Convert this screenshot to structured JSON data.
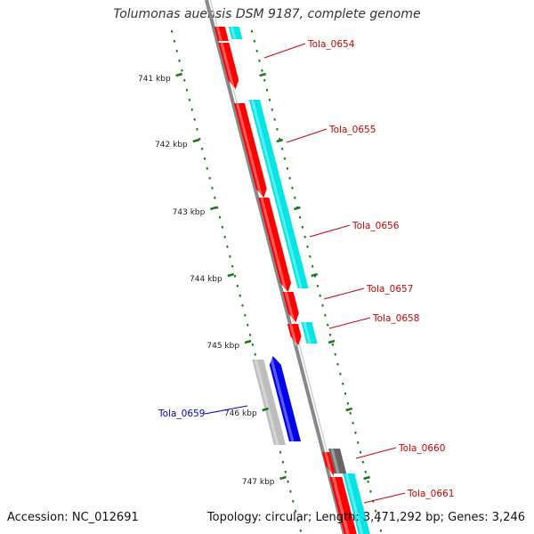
{
  "header": {
    "title": "Tolumonas auensis DSM 9187, complete genome"
  },
  "footer": {
    "accession": "Accession: NC_012691",
    "summary": "Topology: circular; Length: 3,471,292 bp; Genes: 3,246"
  },
  "colors": {
    "forward_cds": "#ff0000",
    "forward_cds_highlight": "#00e5e5",
    "reverse_cds": "#0000ee",
    "reverse_cds_highlight": "#bdbdbd",
    "other_gene": "#666666",
    "backbone": "#888888",
    "tick": "#1a7a1a",
    "label_red": "#cc0000",
    "label_blue": "#0000cc"
  },
  "ruler": {
    "ticks": [
      "741 kbp",
      "742 kbp",
      "743 kbp",
      "744 kbp",
      "745 kbp",
      "746 kbp",
      "747 kbp"
    ]
  },
  "genes": [
    {
      "locus": "Tola_0654",
      "strand": "forward"
    },
    {
      "locus": "Tola_0655",
      "strand": "forward"
    },
    {
      "locus": "Tola_0656",
      "strand": "forward"
    },
    {
      "locus": "Tola_0657",
      "strand": "forward"
    },
    {
      "locus": "Tola_0658",
      "strand": "forward"
    },
    {
      "locus": "Tola_0659",
      "strand": "reverse"
    },
    {
      "locus": "Tola_0660",
      "strand": "forward"
    },
    {
      "locus": "Tola_0661",
      "strand": "forward"
    }
  ]
}
